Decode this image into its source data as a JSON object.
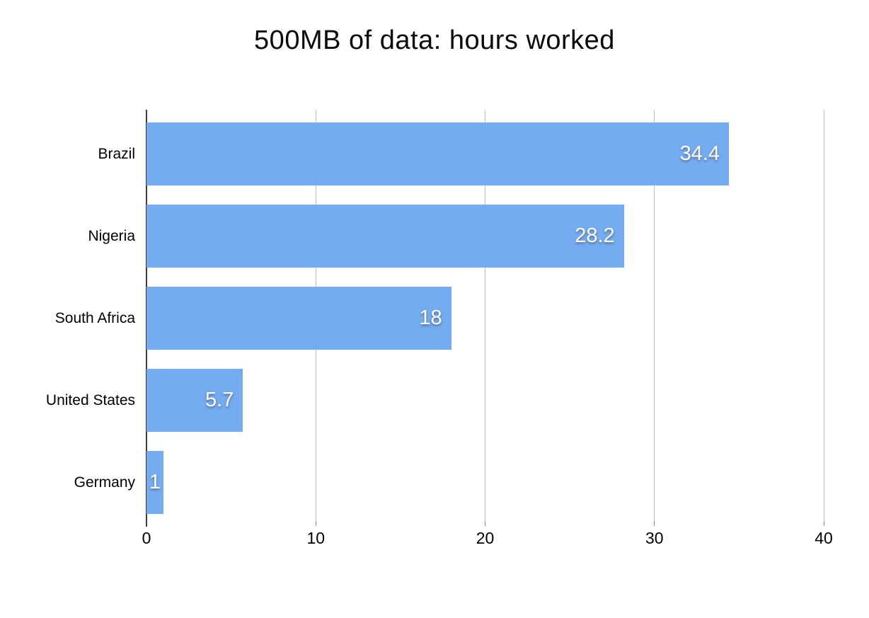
{
  "title": "500MB of data: hours worked",
  "chart_data": {
    "type": "bar",
    "orientation": "horizontal",
    "title": "500MB of data: hours worked",
    "categories": [
      "Brazil",
      "Nigeria",
      "South Africa",
      "United States",
      "Germany"
    ],
    "values": [
      34.4,
      28.2,
      18,
      5.7,
      1
    ],
    "value_labels": [
      "34.4",
      "28.2",
      "18",
      "5.7",
      "1"
    ],
    "x_ticks": [
      0,
      10,
      20,
      30,
      40
    ],
    "x_tick_labels": [
      "0",
      "10",
      "20",
      "30",
      "40"
    ],
    "xlim": [
      0,
      40
    ],
    "grid": true,
    "legend": false,
    "xlabel": "",
    "ylabel": "",
    "colors": {
      "bar": "#74acf2",
      "gridline": "#bdbdbd",
      "tick": "#8c8c8c",
      "axis": "#3b3b3b",
      "text": "#000000",
      "value_label": "#ffffff",
      "background": "#ffffff"
    }
  }
}
